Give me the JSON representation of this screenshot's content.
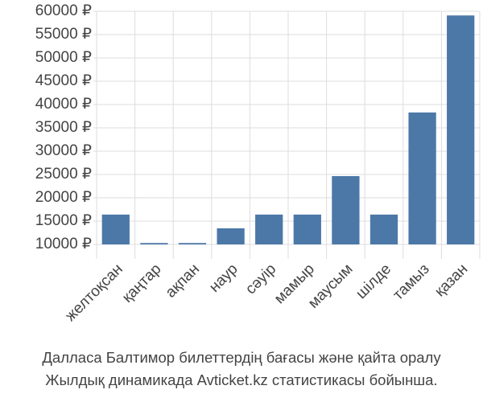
{
  "chart_data": {
    "type": "bar",
    "caption": [
      "Далласа Балтимор билеттердің бағасы және қайта оралу",
      "Жылдық динамикада Avticket.kz статистикасы бойынша."
    ],
    "categories": [
      "желтоқсан",
      "қаңтар",
      "ақпан",
      "наур",
      "сәуір",
      "мамыр",
      "маусым",
      "шілде",
      "тамыз",
      "қазан"
    ],
    "values": [
      16400,
      10300,
      10300,
      13450,
      16400,
      16400,
      24650,
      16400,
      38300,
      59100
    ],
    "color": "#4c78a8",
    "ylim": [
      10000,
      60000
    ],
    "yticks": [
      {
        "value": 10000,
        "label": "10000 ₽"
      },
      {
        "value": 15000,
        "label": "15000 ₽"
      },
      {
        "value": 20000,
        "label": "20000 ₽"
      },
      {
        "value": 25000,
        "label": "25000 ₽"
      },
      {
        "value": 30000,
        "label": "30000 ₽"
      },
      {
        "value": 35000,
        "label": "35000 ₽"
      },
      {
        "value": 40000,
        "label": "40000 ₽"
      },
      {
        "value": 45000,
        "label": "45000 ₽"
      },
      {
        "value": 50000,
        "label": "50000 ₽"
      },
      {
        "value": 55000,
        "label": "55000 ₽"
      },
      {
        "value": 60000,
        "label": "60000 ₽"
      }
    ],
    "grid": true
  }
}
